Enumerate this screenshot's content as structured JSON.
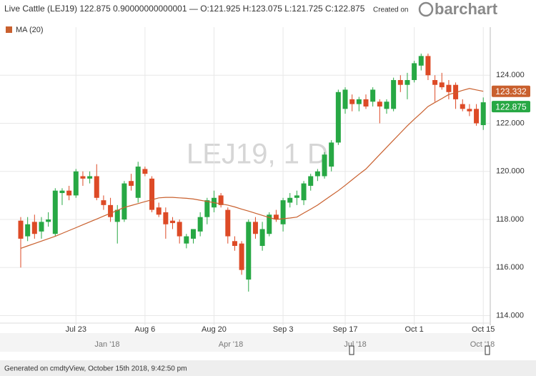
{
  "chart_data": {
    "type": "candlestick",
    "title": "Live Cattle (LEJ19) 122.875 0.90000000000001 — O:121.925 H:123.075 L:121.725 C:122.875",
    "created": "Created on",
    "logo": "barchart",
    "watermark": "LEJ19, 1 D",
    "footer": "Generated on cmdtyView, October 15th 2018, 9:42:50 pm",
    "categories": [
      null,
      null,
      null,
      null,
      null,
      null,
      null,
      null,
      "Jul 23",
      null,
      null,
      null,
      null,
      null,
      null,
      null,
      null,
      null,
      "Aug 6",
      null,
      null,
      null,
      null,
      null,
      null,
      null,
      null,
      null,
      "Aug 20",
      null,
      null,
      null,
      null,
      null,
      null,
      null,
      null,
      null,
      "Sep 3",
      null,
      null,
      null,
      null,
      null,
      null,
      null,
      null,
      "Sep 17",
      null,
      null,
      null,
      null,
      null,
      null,
      null,
      null,
      null,
      "Oct 1",
      null,
      null,
      null,
      null,
      null,
      null,
      null,
      null,
      null,
      "Oct 15"
    ],
    "ohlc": {
      "up_color": "#27a844",
      "down_color": "#dd4a26",
      "open": [
        117.95,
        117.3,
        117.9,
        117.5,
        117.9,
        117.4,
        119.1,
        119.2,
        119.0,
        119.8,
        119.7,
        119.8,
        118.8,
        118.6,
        117.9,
        118.0,
        119.6,
        118.9,
        120.1,
        119.7,
        118.5,
        118.3,
        117.95,
        117.9,
        117.0,
        117.2,
        117.5,
        118.1,
        118.5,
        119.0,
        118.4,
        117.1,
        117.0,
        115.5,
        117.9,
        116.9,
        117.4,
        118.2,
        117.8,
        118.7,
        118.9,
        118.8,
        119.4,
        119.8,
        119.8,
        120.2,
        121.2,
        122.6,
        123.0,
        122.8,
        123.0,
        122.9,
        122.9,
        122.6,
        122.6,
        123.8,
        123.6,
        123.8,
        124.4,
        124.8,
        123.8,
        123.7,
        123.6,
        123.6,
        122.8,
        122.6,
        122.6,
        121.925
      ],
      "high": [
        118.1,
        118.1,
        118.2,
        118.1,
        118.3,
        119.3,
        119.3,
        119.4,
        120.1,
        120.0,
        120.0,
        120.3,
        119.0,
        118.9,
        118.6,
        119.6,
        119.9,
        120.4,
        120.2,
        119.8,
        118.7,
        118.5,
        118.1,
        118.0,
        117.4,
        117.6,
        118.3,
        118.9,
        119.2,
        119.1,
        118.5,
        117.3,
        117.1,
        118.0,
        118.1,
        117.9,
        118.3,
        118.4,
        118.9,
        119.1,
        119.2,
        119.6,
        119.9,
        120.1,
        120.8,
        121.3,
        123.4,
        123.5,
        123.2,
        123.1,
        123.2,
        123.5,
        123.0,
        123.0,
        123.9,
        124.0,
        124.1,
        124.6,
        124.9,
        124.9,
        124.0,
        124.1,
        123.8,
        123.7,
        123.0,
        122.8,
        122.8,
        123.075
      ],
      "low": [
        116.0,
        117.1,
        117.2,
        117.2,
        117.7,
        117.3,
        118.6,
        118.8,
        118.9,
        119.4,
        119.5,
        118.8,
        118.4,
        117.9,
        117.0,
        117.9,
        119.2,
        118.7,
        119.8,
        118.3,
        118.1,
        117.2,
        117.6,
        117.0,
        116.8,
        117.0,
        117.3,
        117.8,
        118.3,
        118.5,
        117.0,
        116.7,
        115.7,
        115.0,
        117.2,
        116.7,
        117.3,
        117.9,
        117.5,
        118.5,
        118.6,
        118.6,
        119.2,
        119.6,
        119.7,
        120.0,
        121.1,
        122.4,
        122.5,
        122.5,
        122.6,
        122.7,
        122.0,
        122.4,
        122.5,
        123.3,
        123.0,
        123.7,
        124.2,
        123.8,
        122.9,
        123.4,
        123.0,
        122.6,
        122.5,
        122.3,
        121.9,
        121.725
      ],
      "close": [
        117.2,
        117.8,
        117.4,
        117.9,
        118.0,
        119.2,
        119.2,
        119.0,
        120.0,
        119.7,
        119.8,
        118.9,
        118.6,
        118.1,
        118.4,
        119.5,
        119.4,
        120.2,
        119.9,
        118.4,
        118.2,
        117.8,
        117.85,
        117.3,
        117.3,
        117.6,
        118.1,
        118.8,
        118.9,
        118.6,
        117.3,
        116.9,
        115.9,
        117.9,
        117.4,
        117.6,
        118.2,
        118.0,
        118.8,
        118.9,
        119.0,
        119.5,
        119.8,
        120.0,
        120.7,
        121.2,
        123.3,
        123.4,
        122.8,
        123.0,
        122.7,
        123.4,
        122.7,
        122.9,
        123.8,
        123.6,
        123.8,
        124.5,
        124.8,
        124.0,
        123.6,
        123.5,
        123.3,
        123.0,
        122.6,
        122.5,
        122.0,
        122.875
      ]
    },
    "series": [
      {
        "name": "MA (20)",
        "color": "#c9602e",
        "values": [
          116.8,
          116.9,
          117.0,
          117.1,
          117.2,
          117.3,
          117.42,
          117.54,
          117.66,
          117.78,
          117.9,
          118.02,
          118.14,
          118.26,
          118.38,
          118.5,
          118.58,
          118.66,
          118.74,
          118.82,
          118.9,
          118.92,
          118.92,
          118.9,
          118.88,
          118.85,
          118.8,
          118.75,
          118.7,
          118.65,
          118.6,
          118.52,
          118.43,
          118.35,
          118.26,
          118.17,
          118.08,
          118.0,
          118.03,
          118.06,
          118.1,
          118.27,
          118.43,
          118.6,
          118.8,
          119.0,
          119.2,
          119.42,
          119.65,
          119.88,
          120.1,
          120.4,
          120.7,
          121.0,
          121.3,
          121.6,
          121.9,
          122.17,
          122.43,
          122.7,
          122.87,
          123.03,
          123.2,
          123.28,
          123.37,
          123.45,
          123.39,
          123.332
        ]
      }
    ],
    "ylim": [
      113.6,
      126
    ],
    "yticks": [
      {
        "value": 114,
        "label": "114.000"
      },
      {
        "value": 116,
        "label": "116.000"
      },
      {
        "value": 118,
        "label": "118.000"
      },
      {
        "value": 120,
        "label": "120.000"
      },
      {
        "value": 122,
        "label": "122.000"
      },
      {
        "value": 124,
        "label": "124.000"
      }
    ],
    "grid": true,
    "navigator_labels": [
      "Jan '18",
      "Apr '18",
      "Jul '18",
      "Oct '18"
    ]
  }
}
